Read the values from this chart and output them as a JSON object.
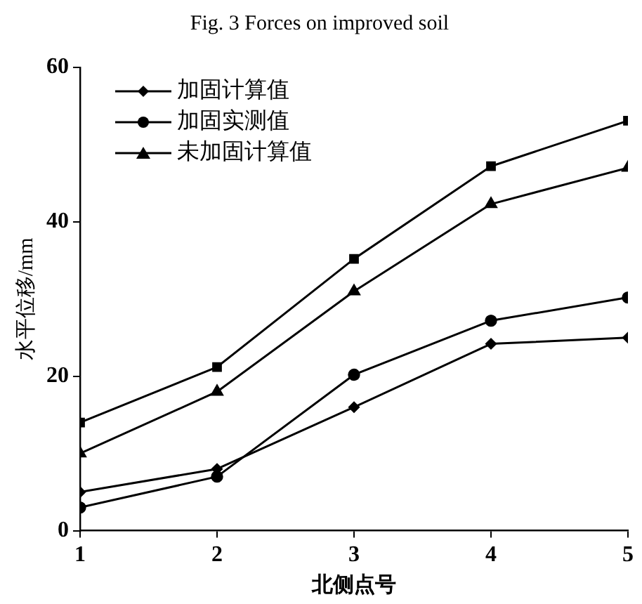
{
  "chart_data": {
    "type": "line",
    "title": "Fig. 3 Forces on improved soil",
    "xlabel": "北侧点号",
    "ylabel": "水平位移/mm",
    "x": [
      1,
      2,
      3,
      4,
      5
    ],
    "xlim": [
      1,
      5
    ],
    "xticks": [
      1,
      2,
      3,
      4,
      5
    ],
    "ylim": [
      0,
      60
    ],
    "yticks": [
      0,
      20,
      40,
      60
    ],
    "grid": false,
    "legend": "top left",
    "line_style": "solid",
    "series": [
      {
        "name": "加固计算值",
        "color": "#000000",
        "marker": "diamond",
        "values": [
          5,
          8,
          16,
          24.2,
          25
        ]
      },
      {
        "name": "加固实测值",
        "color": "#000000",
        "marker": "circle",
        "values": [
          3,
          7,
          20.2,
          27.2,
          30.2
        ]
      },
      {
        "name": "未加固计算值",
        "color": "#000000",
        "marker": "triangle",
        "values": [
          10,
          18,
          31,
          42.3,
          47
        ]
      },
      {
        "color": "#000000",
        "marker": "square",
        "values": [
          14,
          21.2,
          35.2,
          47.2,
          53.1
        ]
      }
    ]
  }
}
